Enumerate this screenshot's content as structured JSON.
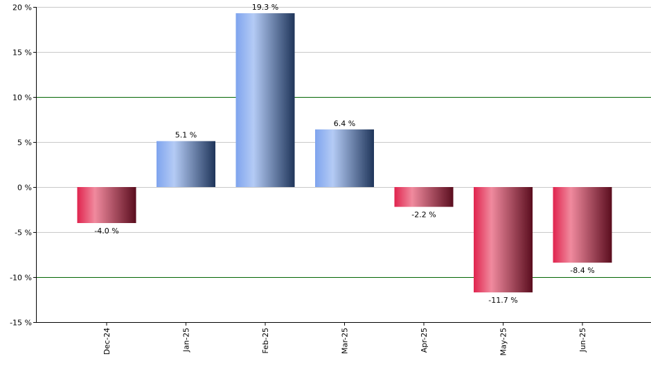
{
  "chart_data": {
    "type": "bar",
    "categories": [
      "Dec-24",
      "Jan-25",
      "Feb-25",
      "Mar-25",
      "Apr-25",
      "May-25",
      "Jun-25"
    ],
    "values": [
      -4.0,
      5.1,
      19.3,
      6.4,
      -2.2,
      -11.7,
      -8.4
    ],
    "value_labels": [
      "-4.0 %",
      "5.1 %",
      "19.3 %",
      "6.4 %",
      "-2.2 %",
      "-11.7 %",
      "-8.4 %"
    ],
    "y_ticks": [
      20,
      15,
      10,
      5,
      0,
      -5,
      -10,
      -15
    ],
    "y_tick_labels": [
      "20 %",
      "15 %",
      "10 %",
      "5 %",
      "0 %",
      "-5 %",
      "-10 %",
      "-15 %"
    ],
    "ylim": [
      -15,
      20
    ],
    "highlight_gridlines": [
      10,
      -10
    ],
    "grid": true,
    "x_tick_rotation": "vertical",
    "colors": {
      "positive_light": "#b4cbf5",
      "positive_mid": "#7fa4ee",
      "positive_dark": "#1f355a",
      "negative_light": "#f08a9e",
      "negative_mid": "#e0244e",
      "negative_dark": "#5a0d1e",
      "gridline": "#c8c8c8",
      "highlight_gridline": "#006400",
      "axis": "#000000"
    }
  }
}
